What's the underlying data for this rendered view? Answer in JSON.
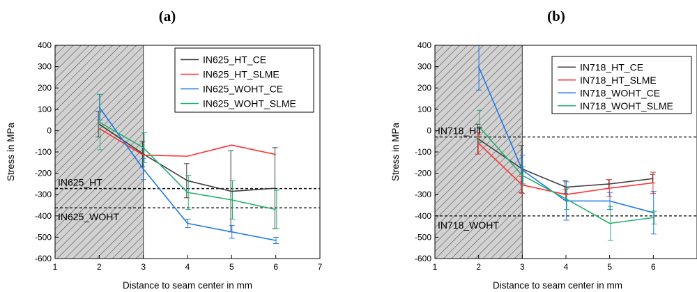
{
  "chart_data": [
    {
      "panel": "(a)",
      "type": "line",
      "xlabel": "Distance to seam center in mm",
      "ylabel": "Stress in MPa",
      "xlim": [
        1,
        7
      ],
      "ylim": [
        -600,
        400
      ],
      "xticks": [
        1,
        2,
        3,
        4,
        5,
        6,
        7
      ],
      "yticks": [
        -600,
        -500,
        -400,
        -300,
        -200,
        -100,
        0,
        100,
        200,
        300,
        400
      ],
      "shaded_region": [
        1,
        3
      ],
      "legend_position": "top-right",
      "x": [
        2,
        3,
        4,
        5,
        6
      ],
      "series": [
        {
          "name": "IN625_HT_CE",
          "color": "#404040",
          "values": [
            30,
            -110,
            -235,
            -285,
            -270
          ],
          "errors": [
            60,
            60,
            80,
            190,
            190
          ]
        },
        {
          "name": "IN625_HT_SLME",
          "color": "#ff3030",
          "values": [
            10,
            -115,
            -120,
            -68,
            -112
          ],
          "errors": [
            0,
            0,
            0,
            0,
            0
          ]
        },
        {
          "name": "IN625_WOHT_CE",
          "color": "#1e78e6",
          "values": [
            110,
            -180,
            -435,
            -475,
            -515
          ],
          "errors": [
            60,
            50,
            20,
            30,
            15
          ]
        },
        {
          "name": "IN625_WOHT_SLME",
          "color": "#22b06e",
          "values": [
            40,
            -80,
            -290,
            -325,
            -370
          ],
          "errors": [
            130,
            70,
            80,
            90,
            90
          ]
        }
      ],
      "reference_lines": [
        {
          "label": "IN625_HT",
          "y": -272
        },
        {
          "label": "IN625_WOHT",
          "y": -362
        }
      ]
    },
    {
      "panel": "(b)",
      "type": "line",
      "xlabel": "Distance to seam center in mm",
      "ylabel": "Stress in MPa",
      "xlim": [
        1,
        7
      ],
      "ylim": [
        -600,
        400
      ],
      "xticks": [
        1,
        2,
        3,
        4,
        5,
        6
      ],
      "yticks": [
        -600,
        -500,
        -400,
        -300,
        -200,
        -100,
        0,
        100,
        200,
        300,
        400
      ],
      "shaded_region": [
        1,
        3
      ],
      "legend_position": "top-right",
      "x": [
        2,
        3,
        4,
        5,
        6
      ],
      "series": [
        {
          "name": "IN718_HT_CE",
          "color": "#404040",
          "values": [
            -40,
            -180,
            -265,
            -250,
            -225
          ],
          "errors": [
            70,
            110,
            30,
            20,
            20
          ]
        },
        {
          "name": "IN718_HT_SLME",
          "color": "#ff3030",
          "values": [
            -60,
            -255,
            -300,
            -270,
            -245
          ],
          "errors": [
            50,
            40,
            25,
            40,
            50
          ]
        },
        {
          "name": "IN718_WOHT_CE",
          "color": "#1e78e6",
          "values": [
            300,
            -185,
            -330,
            -330,
            -385
          ],
          "errors": [
            110,
            70,
            90,
            40,
            100
          ]
        },
        {
          "name": "IN718_WOHT_SLME",
          "color": "#22b06e",
          "values": [
            20,
            -210,
            -320,
            -435,
            -408
          ],
          "errors": [
            75,
            40,
            50,
            80,
            30
          ]
        }
      ],
      "reference_lines": [
        {
          "label": "IN718_HT",
          "y": -30
        },
        {
          "label": "IN718_WOHT",
          "y": -400
        }
      ]
    }
  ]
}
